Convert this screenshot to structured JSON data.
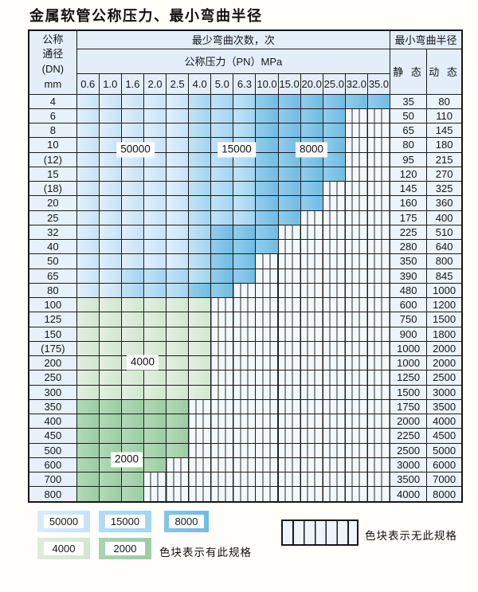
{
  "title": "金属软管公称压力、最小弯曲半径",
  "table": {
    "corner": {
      "l1": "公称",
      "l2": "通径",
      "l3": "(DN)",
      "l4": "mm"
    },
    "span_cycles": "最少弯曲次数，次",
    "span_radius": "最小弯曲半径",
    "span_pressure": "公称压力（PN）MPa",
    "static_header": "静 态",
    "dynamic_header": "动 态",
    "pressure_columns": [
      "0.6",
      "1.0",
      "1.6",
      "2.0",
      "2.5",
      "4.0",
      "5.0",
      "6.3",
      "10.0",
      "15.0",
      "20.0",
      "25.0",
      "32.0",
      "35.0"
    ],
    "rows": [
      {
        "dn": "4",
        "spans": [
          [
            5,
            "b1"
          ],
          [
            3,
            "b2"
          ],
          [
            6,
            "b3"
          ]
        ],
        "static": "35",
        "dynamic": "80"
      },
      {
        "dn": "6",
        "spans": [
          [
            5,
            "b1"
          ],
          [
            3,
            "b2"
          ],
          [
            4,
            "b3"
          ]
        ],
        "static": "50",
        "dynamic": "110"
      },
      {
        "dn": "8",
        "spans": [
          [
            5,
            "b1"
          ],
          [
            3,
            "b2"
          ],
          [
            4,
            "b3"
          ]
        ],
        "static": "65",
        "dynamic": "145"
      },
      {
        "dn": "10",
        "spans": [
          [
            5,
            "b1"
          ],
          [
            3,
            "b2"
          ],
          [
            4,
            "b3"
          ]
        ],
        "static": "80",
        "dynamic": "180"
      },
      {
        "dn": "(12)",
        "spans": [
          [
            5,
            "b1"
          ],
          [
            3,
            "b2"
          ],
          [
            4,
            "b3"
          ]
        ],
        "static": "95",
        "dynamic": "215"
      },
      {
        "dn": "15",
        "spans": [
          [
            5,
            "b1"
          ],
          [
            3,
            "b2"
          ],
          [
            4,
            "b3"
          ]
        ],
        "static": "120",
        "dynamic": "270"
      },
      {
        "dn": "(18)",
        "spans": [
          [
            5,
            "b1"
          ],
          [
            3,
            "b2"
          ],
          [
            3,
            "b3"
          ]
        ],
        "static": "145",
        "dynamic": "325"
      },
      {
        "dn": "20",
        "spans": [
          [
            5,
            "b1"
          ],
          [
            3,
            "b2"
          ],
          [
            3,
            "b3"
          ]
        ],
        "static": "160",
        "dynamic": "360"
      },
      {
        "dn": "25",
        "spans": [
          [
            5,
            "b1"
          ],
          [
            3,
            "b2"
          ],
          [
            2,
            "b3"
          ]
        ],
        "static": "175",
        "dynamic": "400"
      },
      {
        "dn": "32",
        "spans": [
          [
            5,
            "b1"
          ],
          [
            1,
            "b2"
          ],
          [
            3,
            "b3"
          ]
        ],
        "static": "225",
        "dynamic": "510"
      },
      {
        "dn": "40",
        "spans": [
          [
            5,
            "b1"
          ],
          [
            1,
            "b2"
          ],
          [
            3,
            "b3"
          ]
        ],
        "static": "280",
        "dynamic": "640"
      },
      {
        "dn": "50",
        "spans": [
          [
            5,
            "b1"
          ],
          [
            1,
            "b2"
          ],
          [
            2,
            "b3"
          ]
        ],
        "static": "350",
        "dynamic": "800"
      },
      {
        "dn": "65",
        "spans": [
          [
            2,
            "b1"
          ],
          [
            4,
            "b2"
          ],
          [
            2,
            "b3"
          ]
        ],
        "static": "390",
        "dynamic": "845"
      },
      {
        "dn": "80",
        "spans": [
          [
            2,
            "b1"
          ],
          [
            3,
            "b2"
          ],
          [
            2,
            "b3"
          ]
        ],
        "static": "480",
        "dynamic": "1000"
      },
      {
        "dn": "100",
        "spans": [
          [
            6,
            "g1"
          ]
        ],
        "static": "600",
        "dynamic": "1200"
      },
      {
        "dn": "125",
        "spans": [
          [
            6,
            "g1"
          ]
        ],
        "static": "750",
        "dynamic": "1500"
      },
      {
        "dn": "150",
        "spans": [
          [
            6,
            "g1"
          ]
        ],
        "static": "900",
        "dynamic": "1800"
      },
      {
        "dn": "(175)",
        "spans": [
          [
            6,
            "g1"
          ]
        ],
        "static": "1000",
        "dynamic": "2000"
      },
      {
        "dn": "200",
        "spans": [
          [
            6,
            "g1"
          ]
        ],
        "static": "1000",
        "dynamic": "2000"
      },
      {
        "dn": "250",
        "spans": [
          [
            6,
            "g1"
          ]
        ],
        "static": "1250",
        "dynamic": "2500"
      },
      {
        "dn": "300",
        "spans": [
          [
            6,
            "g1"
          ]
        ],
        "static": "1500",
        "dynamic": "3000"
      },
      {
        "dn": "350",
        "spans": [
          [
            5,
            "g2"
          ]
        ],
        "static": "1750",
        "dynamic": "3500"
      },
      {
        "dn": "400",
        "spans": [
          [
            5,
            "g2"
          ]
        ],
        "static": "2000",
        "dynamic": "4000"
      },
      {
        "dn": "450",
        "spans": [
          [
            5,
            "g2"
          ]
        ],
        "static": "2250",
        "dynamic": "4500"
      },
      {
        "dn": "500",
        "spans": [
          [
            5,
            "g2"
          ]
        ],
        "static": "2500",
        "dynamic": "5000"
      },
      {
        "dn": "600",
        "spans": [
          [
            4,
            "g2"
          ]
        ],
        "static": "3000",
        "dynamic": "6000"
      },
      {
        "dn": "700",
        "spans": [
          [
            3,
            "g2"
          ]
        ],
        "static": "3500",
        "dynamic": "7000"
      },
      {
        "dn": "800",
        "spans": [
          [
            3,
            "g2"
          ]
        ],
        "static": "4000",
        "dynamic": "8000"
      }
    ]
  },
  "overlays": {
    "b50k": "50000",
    "b15k": "15000",
    "b8k": "8000",
    "g4k": "4000",
    "g2k": "2000"
  },
  "legend": {
    "items": [
      {
        "label": "50000"
      },
      {
        "label": "15000"
      },
      {
        "label": "8000"
      },
      {
        "label": "4000"
      },
      {
        "label": "2000"
      }
    ],
    "has_spec_text": "色块表示有此规格",
    "no_spec_text": "色块表示无此规格"
  },
  "colors": {
    "cycles_50000": "#c6e3f7",
    "cycles_15000": "#a2d5f0",
    "cycles_8000": "#6fbce4",
    "cycles_4000": "#d2e7cf",
    "cycles_2000": "#9bcda3",
    "no_spec_bg": "#f3f8fc",
    "grid_line": "#1c1c1c"
  }
}
